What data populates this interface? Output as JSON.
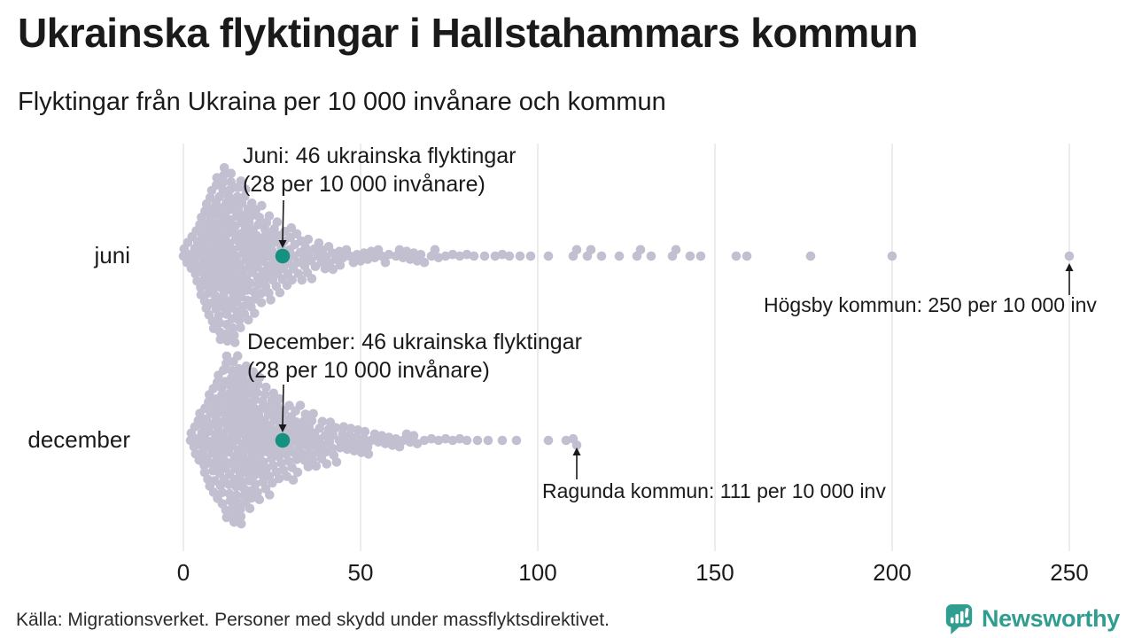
{
  "header": {
    "title": "Ukrainska flyktingar i Hallstahammars kommun",
    "subtitle": "Flyktingar från Ukraina per 10 000 invånare och kommun"
  },
  "colors": {
    "dot": "#c2bfd0",
    "highlight": "#14917f",
    "gridline": "#d8d8d8",
    "arrow": "#1a1a1a",
    "brand": "#2f9e91"
  },
  "chart_data": {
    "type": "beeswarm",
    "title": "Ukrainska flyktingar i Hallstahammars kommun",
    "subtitle": "Flyktingar från Ukraina per 10 000 invånare och kommun",
    "unit": "flyktingar per 10 000 invånare, en punkt per kommun",
    "x_ticks": [
      0,
      50,
      100,
      150,
      200,
      250
    ],
    "xlim": [
      0,
      255
    ],
    "grid": true,
    "rows": [
      {
        "label": "juni",
        "highlight": {
          "municipality": "Hallstahammars kommun",
          "value": 28,
          "refugees": 46,
          "line1": "Juni: 46 ukrainska flyktingar",
          "line2": "(28 per 10 000 invånare)"
        },
        "callout": {
          "municipality": "Högsby kommun",
          "value": 250,
          "text": "Högsby kommun: 250 per 10 000 inv"
        },
        "values_hist": [
          [
            0,
            2
          ],
          [
            1,
            2
          ],
          [
            2,
            3
          ],
          [
            3,
            5
          ],
          [
            4,
            7
          ],
          [
            5,
            9
          ],
          [
            6,
            10
          ],
          [
            7,
            11
          ],
          [
            8,
            12
          ],
          [
            9,
            12
          ],
          [
            10,
            12
          ],
          [
            11,
            12
          ],
          [
            12,
            11
          ],
          [
            13,
            11
          ],
          [
            14,
            10
          ],
          [
            15,
            10
          ],
          [
            16,
            9
          ],
          [
            17,
            8
          ],
          [
            18,
            8
          ],
          [
            19,
            7
          ],
          [
            20,
            7
          ],
          [
            21,
            6
          ],
          [
            22,
            6
          ],
          [
            23,
            6
          ],
          [
            24,
            5
          ],
          [
            25,
            5
          ],
          [
            26,
            5
          ],
          [
            27,
            4
          ],
          [
            28,
            4
          ],
          [
            29,
            4
          ],
          [
            30,
            4
          ],
          [
            31,
            3
          ],
          [
            32,
            3
          ],
          [
            33,
            3
          ],
          [
            34,
            3
          ],
          [
            35,
            3
          ],
          [
            36,
            2
          ],
          [
            37,
            2
          ],
          [
            38,
            2
          ],
          [
            39,
            2
          ],
          [
            40,
            2
          ],
          [
            41,
            2
          ],
          [
            42,
            2
          ],
          [
            43,
            1
          ],
          [
            44,
            2
          ],
          [
            45,
            1
          ],
          [
            46,
            1
          ],
          [
            47,
            1
          ],
          [
            48,
            1
          ],
          [
            49,
            1
          ],
          [
            50,
            1
          ],
          [
            51,
            1
          ],
          [
            52,
            1
          ],
          [
            53,
            1
          ],
          [
            54,
            1
          ],
          [
            55,
            1
          ],
          [
            56,
            1
          ],
          [
            57,
            1
          ],
          [
            58,
            1
          ],
          [
            60,
            1
          ],
          [
            61,
            1
          ],
          [
            62,
            1
          ],
          [
            63,
            1
          ],
          [
            64,
            1
          ],
          [
            65,
            1
          ],
          [
            66,
            1
          ],
          [
            67,
            1
          ],
          [
            68,
            1
          ],
          [
            70,
            1
          ],
          [
            71,
            1
          ],
          [
            72,
            1
          ],
          [
            74,
            1
          ],
          [
            76,
            1
          ],
          [
            78,
            1
          ],
          [
            80,
            1
          ],
          [
            82,
            1
          ],
          [
            85,
            1
          ],
          [
            88,
            1
          ],
          [
            90,
            1
          ],
          [
            92,
            1
          ],
          [
            95,
            1
          ],
          [
            98,
            1
          ],
          [
            103,
            1
          ],
          [
            110,
            1
          ],
          [
            111,
            1
          ],
          [
            114,
            1
          ],
          [
            115,
            1
          ],
          [
            118,
            1
          ],
          [
            123,
            1
          ],
          [
            128,
            1
          ],
          [
            129,
            1
          ],
          [
            132,
            1
          ],
          [
            138,
            1
          ],
          [
            139,
            1
          ],
          [
            143,
            1
          ],
          [
            146,
            1
          ],
          [
            156,
            1
          ],
          [
            159,
            1
          ],
          [
            177,
            1
          ],
          [
            200,
            1
          ],
          [
            250,
            1
          ]
        ]
      },
      {
        "label": "december",
        "highlight": {
          "municipality": "Hallstahammars kommun",
          "value": 28,
          "refugees": 46,
          "line1": "December: 46 ukrainska flyktingar",
          "line2": "(28 per 10 000 invånare)"
        },
        "callout": {
          "municipality": "Ragunda kommun",
          "value": 111,
          "text": "Ragunda kommun: 111 per 10 000 inv"
        },
        "values_hist": [
          [
            2,
            2
          ],
          [
            3,
            3
          ],
          [
            4,
            4
          ],
          [
            5,
            6
          ],
          [
            6,
            7
          ],
          [
            7,
            8
          ],
          [
            8,
            9
          ],
          [
            9,
            10
          ],
          [
            10,
            11
          ],
          [
            11,
            11
          ],
          [
            12,
            12
          ],
          [
            13,
            12
          ],
          [
            14,
            11
          ],
          [
            15,
            11
          ],
          [
            16,
            10
          ],
          [
            17,
            10
          ],
          [
            18,
            9
          ],
          [
            19,
            9
          ],
          [
            20,
            8
          ],
          [
            21,
            8
          ],
          [
            22,
            7
          ],
          [
            23,
            7
          ],
          [
            24,
            7
          ],
          [
            25,
            6
          ],
          [
            26,
            6
          ],
          [
            27,
            5
          ],
          [
            28,
            5
          ],
          [
            29,
            5
          ],
          [
            30,
            5
          ],
          [
            31,
            5
          ],
          [
            32,
            4
          ],
          [
            33,
            4
          ],
          [
            34,
            4
          ],
          [
            35,
            4
          ],
          [
            36,
            4
          ],
          [
            37,
            3
          ],
          [
            38,
            3
          ],
          [
            39,
            3
          ],
          [
            40,
            3
          ],
          [
            41,
            3
          ],
          [
            42,
            3
          ],
          [
            43,
            2
          ],
          [
            44,
            2
          ],
          [
            45,
            2
          ],
          [
            46,
            2
          ],
          [
            47,
            2
          ],
          [
            48,
            2
          ],
          [
            49,
            2
          ],
          [
            50,
            2
          ],
          [
            51,
            2
          ],
          [
            52,
            2
          ],
          [
            53,
            1
          ],
          [
            54,
            1
          ],
          [
            55,
            1
          ],
          [
            56,
            1
          ],
          [
            57,
            1
          ],
          [
            58,
            1
          ],
          [
            59,
            1
          ],
          [
            60,
            1
          ],
          [
            61,
            1
          ],
          [
            62,
            1
          ],
          [
            63,
            1
          ],
          [
            64,
            1
          ],
          [
            65,
            1
          ],
          [
            66,
            1
          ],
          [
            68,
            1
          ],
          [
            70,
            1
          ],
          [
            72,
            1
          ],
          [
            74,
            1
          ],
          [
            76,
            1
          ],
          [
            78,
            1
          ],
          [
            80,
            1
          ],
          [
            83,
            1
          ],
          [
            86,
            1
          ],
          [
            90,
            1
          ],
          [
            94,
            1
          ],
          [
            103,
            1
          ],
          [
            108,
            1
          ],
          [
            110,
            1
          ],
          [
            111,
            1
          ]
        ]
      }
    ]
  },
  "footer": {
    "source": "Källa: Migrationsverket. Personer med skydd under massflyktsdirektivet.",
    "brand": "Newsworthy"
  }
}
